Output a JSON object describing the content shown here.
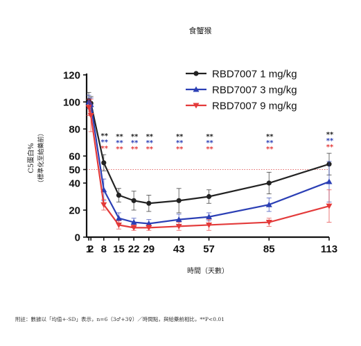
{
  "chart_data": {
    "type": "line",
    "title": "食蟹猴",
    "xlabel": "時間（天數）",
    "ylabel": "C5蛋白%",
    "ylabel_sub": "（標準化至給藥前）",
    "x": [
      1,
      2,
      8,
      15,
      22,
      29,
      43,
      57,
      85,
      113
    ],
    "x_ticks": [
      1,
      2,
      8,
      15,
      22,
      29,
      43,
      57,
      85,
      113
    ],
    "y_ticks": [
      0,
      20,
      40,
      50,
      60,
      80,
      100,
      120
    ],
    "ylim": [
      0,
      120
    ],
    "reference_line": 50,
    "legend_position": "top-right",
    "series": [
      {
        "name": "RBD7007 1 mg/kg",
        "color": "#222222",
        "marker": "circle",
        "values": [
          101,
          99,
          55,
          31,
          27,
          25,
          27,
          30,
          40,
          54
        ],
        "err": [
          6,
          5,
          6,
          5,
          7,
          6,
          9,
          5,
          8,
          8
        ]
      },
      {
        "name": "RBD7007 3 mg/kg",
        "color": "#2b3fb5",
        "marker": "triangle-up",
        "values": [
          100,
          98,
          35,
          14,
          11,
          10,
          13,
          15,
          24,
          41
        ],
        "err": [
          5,
          5,
          8,
          4,
          3,
          3,
          4,
          3,
          5,
          15
        ]
      },
      {
        "name": "RBD7007 9 mg/kg",
        "color": "#e33a3a",
        "marker": "triangle-down",
        "values": [
          96,
          90,
          24,
          9,
          7,
          7,
          8,
          9,
          11,
          23
        ],
        "err": [
          6,
          12,
          4,
          3,
          2,
          2,
          3,
          4,
          3,
          12
        ]
      }
    ],
    "significance": {
      "label": "**",
      "colors": [
        "#222222",
        "#2b3fb5",
        "#e33a3a"
      ],
      "at_x": [
        8,
        15,
        22,
        29,
        43,
        57,
        85,
        113
      ]
    },
    "footnote": "附註：數據以「均值+-SD」表示，n=6（3♂+3♀）／時間點，與給藥前相比，**P<0.01"
  }
}
